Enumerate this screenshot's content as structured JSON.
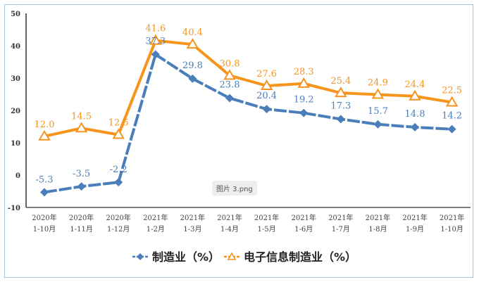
{
  "chart_data": {
    "type": "line",
    "categories": [
      "2020年\n1-10月",
      "2020年\n1-11月",
      "2020年\n1-12月",
      "2021年\n1-2月",
      "2021年\n1-3月",
      "2021年\n1-4月",
      "2021年\n1-5月",
      "2021年\n1-6月",
      "2021年\n1-7月",
      "2021年\n1-8月",
      "2021年\n1-9月",
      "2021年\n1-10月"
    ],
    "ylim": [
      -10,
      50
    ],
    "yticks": [
      -10,
      0,
      10,
      20,
      30,
      40,
      50
    ],
    "grid": false,
    "legend": "bottom",
    "series": [
      {
        "name": "制造业（%）",
        "color": "#4a7ebb",
        "marker": "diamond",
        "values": [
          -5.3,
          -3.5,
          -2.2,
          37.3,
          29.8,
          23.8,
          20.4,
          19.2,
          17.3,
          15.7,
          14.8,
          14.2
        ],
        "labels": [
          "-5.3",
          "-3.5",
          "-2.2",
          "37.3",
          "29.8",
          "23.8",
          "20.4",
          "19.2",
          "17.3",
          "15.7",
          "14.8",
          "14.2"
        ]
      },
      {
        "name": "电子信息制造业（%）",
        "color": "#f7941d",
        "marker": "triangle",
        "values": [
          12.0,
          14.5,
          12.5,
          41.6,
          40.4,
          30.8,
          27.6,
          28.3,
          25.4,
          24.9,
          24.4,
          22.5
        ],
        "labels": [
          "12.0",
          "14.5",
          "12.5",
          "41.6",
          "40.4",
          "30.8",
          "27.6",
          "28.3",
          "25.4",
          "24.9",
          "24.4",
          "22.5"
        ]
      }
    ]
  },
  "tooltip": "图片 3.png"
}
